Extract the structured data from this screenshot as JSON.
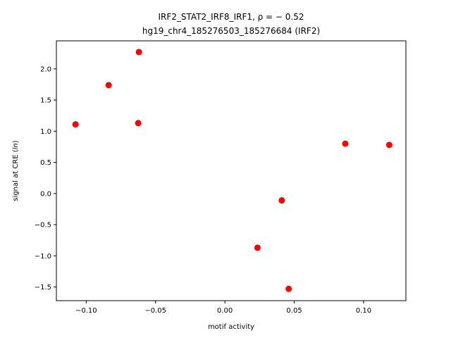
{
  "chart_data": {
    "type": "scatter",
    "title_line1": "IRF2_STAT2_IRF8_IRF1, ρ = − 0.52",
    "title_line2": "hg19_chr4_185276503_185276684 (IRF2)",
    "xlabel": "motif activity",
    "ylabel": "signal at CRE (",
    "ylabel_italic": "ln",
    "ylabel_end": ")",
    "xlim": [
      -0.1215,
      0.1305
    ],
    "ylim": [
      -1.72,
      2.45
    ],
    "grid": false,
    "marker_color": "#ff0000",
    "x_ticks": [
      {
        "value": -0.1,
        "label": "−0.10"
      },
      {
        "value": -0.05,
        "label": "−0.05"
      },
      {
        "value": 0.0,
        "label": "0.00"
      },
      {
        "value": 0.05,
        "label": "0.05"
      },
      {
        "value": 0.1,
        "label": "0.10"
      }
    ],
    "y_ticks": [
      {
        "value": -1.5,
        "label": "−1.5"
      },
      {
        "value": -1.0,
        "label": "−1.0"
      },
      {
        "value": -0.5,
        "label": "−0.5"
      },
      {
        "value": 0.0,
        "label": "0.0"
      },
      {
        "value": 0.5,
        "label": "0.5"
      },
      {
        "value": 1.0,
        "label": "1.0"
      },
      {
        "value": 1.5,
        "label": "1.5"
      },
      {
        "value": 2.0,
        "label": "2.0"
      }
    ],
    "points": [
      {
        "x": -0.1077,
        "y": 1.11
      },
      {
        "x": -0.0838,
        "y": 1.74
      },
      {
        "x": -0.062,
        "y": 2.27
      },
      {
        "x": -0.0625,
        "y": 1.13
      },
      {
        "x": 0.0235,
        "y": -0.87
      },
      {
        "x": 0.041,
        "y": -0.11
      },
      {
        "x": 0.046,
        "y": -1.53
      },
      {
        "x": 0.0868,
        "y": 0.8
      },
      {
        "x": 0.1185,
        "y": 0.78
      }
    ]
  }
}
